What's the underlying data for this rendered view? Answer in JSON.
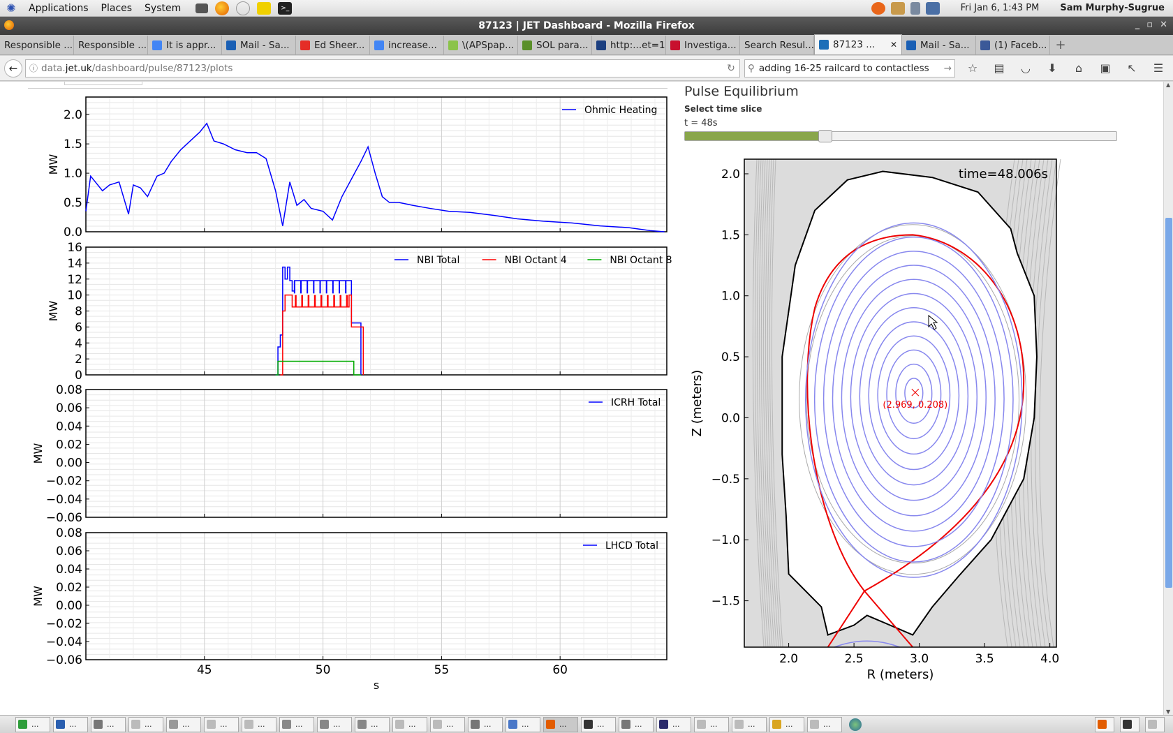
{
  "panel": {
    "menus": [
      "Applications",
      "Places",
      "System"
    ],
    "clock": "Fri Jan  6,  1:43 PM",
    "user": "Sam Murphy-Sugrue"
  },
  "window": {
    "title": "87123 | JET Dashboard - Mozilla Firefox"
  },
  "tabs": [
    {
      "label": "Responsible ...",
      "icon": "none"
    },
    {
      "label": "Responsible ...",
      "icon": "none"
    },
    {
      "label": "It is appr...",
      "icon": "google-icon",
      "color": "#4285f4"
    },
    {
      "label": "Mail - Sa...",
      "icon": "outlook-icon",
      "color": "#1a5fb4"
    },
    {
      "label": "Ed Sheer...",
      "icon": "youtube-icon",
      "color": "#e52d27"
    },
    {
      "label": "increase...",
      "icon": "google-icon",
      "color": "#4285f4"
    },
    {
      "label": "\\(APSpap...",
      "icon": "smiley-icon",
      "color": "#8bc34a"
    },
    {
      "label": "SOL para...",
      "icon": "sciencedirect-icon",
      "color": "#5a8f29"
    },
    {
      "label": "http:...et=1",
      "icon": "ads-icon",
      "color": "#1c3f80"
    },
    {
      "label": "Investiga...",
      "icon": "iop-icon",
      "color": "#c8102e"
    },
    {
      "label": "Search Resul...",
      "icon": "none"
    },
    {
      "label": "87123 ...",
      "icon": "jet-icon",
      "color": "#1d6fb8",
      "active": true
    },
    {
      "label": "Mail - Sa...",
      "icon": "outlook-icon",
      "color": "#1a5fb4"
    },
    {
      "label": "(1) Faceb...",
      "icon": "facebook-icon",
      "color": "#3b5998"
    }
  ],
  "nav": {
    "url_prefix": "data.",
    "url_domain": "jet.uk",
    "url_path": "/dashboard/pulse/87123/plots",
    "search_value": "adding 16-25 railcard to contactless"
  },
  "equilibrium": {
    "title": "Pulse Equilibrium",
    "slice_label": "Select time slice",
    "time_text": "t = 48s",
    "slider_fraction": 0.325,
    "plot_time_label": "time=48.006s",
    "axis_label_point": "(2.969, 0.208)",
    "xlabel": "R (meters)",
    "ylabel": "Z (meters)",
    "x_ticks": [
      "2.0",
      "2.5",
      "3.0",
      "3.5",
      "4.0"
    ],
    "y_ticks": [
      "2.0",
      "1.5",
      "1.0",
      "0.5",
      "0.0",
      "−0.5",
      "−1.0",
      "−1.5"
    ]
  },
  "chart_data": [
    {
      "type": "line",
      "title": "",
      "ylabel": "MW",
      "xlabel": "",
      "xlim": [
        40,
        64.5
      ],
      "ylim": [
        0,
        2.3
      ],
      "y_ticks": [
        "2.0",
        "1.5",
        "1.0",
        "0.5",
        "0.0"
      ],
      "legend": "top-right",
      "series": [
        {
          "name": "Ohmic Heating",
          "color": "#0000ff",
          "x": [
            40.0,
            40.2,
            40.4,
            40.7,
            41.0,
            41.4,
            41.8,
            42.0,
            42.3,
            42.6,
            43.0,
            43.3,
            43.6,
            44.0,
            44.4,
            44.8,
            45.1,
            45.4,
            45.8,
            46.3,
            46.8,
            47.2,
            47.6,
            48.0,
            48.3,
            48.6,
            48.9,
            49.2,
            49.5,
            50.0,
            50.4,
            50.8,
            51.2,
            51.6,
            51.9,
            52.2,
            52.5,
            52.8,
            53.2,
            53.8,
            54.5,
            55.3,
            56.2,
            57.2,
            58.2,
            59.3,
            60.5,
            61.7,
            62.9,
            63.8,
            64.4
          ],
          "values": [
            0.35,
            0.95,
            0.85,
            0.7,
            0.8,
            0.85,
            0.3,
            0.8,
            0.75,
            0.6,
            0.95,
            1.0,
            1.2,
            1.4,
            1.55,
            1.7,
            1.85,
            1.55,
            1.5,
            1.4,
            1.35,
            1.35,
            1.25,
            0.7,
            0.1,
            0.85,
            0.45,
            0.55,
            0.4,
            0.35,
            0.2,
            0.6,
            0.9,
            1.2,
            1.45,
            1.0,
            0.6,
            0.5,
            0.5,
            0.45,
            0.4,
            0.35,
            0.33,
            0.28,
            0.22,
            0.18,
            0.15,
            0.1,
            0.07,
            0.02,
            0.0
          ]
        }
      ]
    },
    {
      "type": "line",
      "ylabel": "MW",
      "xlim": [
        40,
        64.5
      ],
      "ylim": [
        0,
        16
      ],
      "y_ticks": [
        "16",
        "14",
        "12",
        "10",
        "8",
        "6",
        "4",
        "2",
        "0"
      ],
      "legend": "top-right",
      "series": [
        {
          "name": "NBI Total",
          "color": "#0000ff",
          "x": [
            48.0,
            48.1,
            48.2,
            48.3,
            48.4,
            48.5,
            48.6,
            48.7,
            48.8,
            51.1,
            51.2,
            51.5,
            51.6
          ],
          "values": [
            0.0,
            3.5,
            5.0,
            13.5,
            12.0,
            13.5,
            11.8,
            10.5,
            11.8,
            11.8,
            6.5,
            6.5,
            0.0
          ]
        },
        {
          "name": "NBI Octant 4",
          "color": "#ff0000",
          "x": [
            48.2,
            48.3,
            48.4,
            48.6,
            48.7,
            51.1,
            51.2,
            51.6,
            51.7
          ],
          "values": [
            0.0,
            8.0,
            10.0,
            10.0,
            8.5,
            10.0,
            6.0,
            6.0,
            0.0
          ]
        },
        {
          "name": "NBI Octant 8",
          "color": "#00aa00",
          "x": [
            48.0,
            48.1,
            51.2,
            51.3,
            51.6
          ],
          "values": [
            0.0,
            1.7,
            1.7,
            0.0,
            0.0
          ]
        }
      ]
    },
    {
      "type": "line",
      "ylabel": "MW",
      "xlim": [
        40,
        64.5
      ],
      "ylim": [
        -0.06,
        0.08
      ],
      "y_ticks": [
        "0.08",
        "0.06",
        "0.04",
        "0.02",
        "0.00",
        "−0.02",
        "−0.04",
        "−0.06"
      ],
      "legend": "top-right",
      "series": [
        {
          "name": "ICRH Total",
          "color": "#0000ff",
          "x": [],
          "values": []
        }
      ]
    },
    {
      "type": "line",
      "ylabel": "MW",
      "xlabel": "s",
      "xlim": [
        40,
        64.5
      ],
      "ylim": [
        -0.06,
        0.08
      ],
      "y_ticks": [
        "0.08",
        "0.06",
        "0.04",
        "0.02",
        "0.00",
        "−0.02",
        "−0.04",
        "−0.06"
      ],
      "x_ticks": [
        "45",
        "50",
        "55",
        "60"
      ],
      "legend": "top-right",
      "series": [
        {
          "name": "LHCD Total",
          "color": "#0000ff",
          "x": [],
          "values": []
        }
      ]
    }
  ]
}
